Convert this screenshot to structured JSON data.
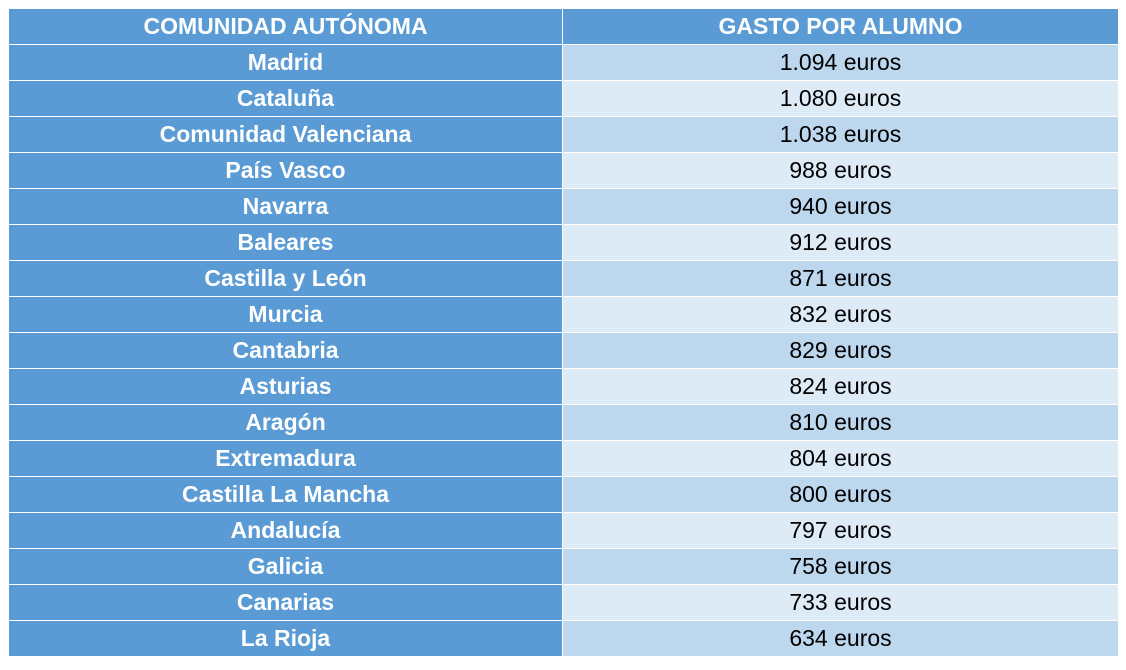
{
  "table": {
    "headers": [
      "COMUNIDAD AUTÓNOMA",
      "GASTO POR ALUMNO"
    ],
    "rows": [
      {
        "region": "Madrid",
        "value": "1.094 euros"
      },
      {
        "region": "Cataluña",
        "value": "1.080 euros"
      },
      {
        "region": "Comunidad Valenciana",
        "value": "1.038 euros"
      },
      {
        "region": "País Vasco",
        "value": "988 euros"
      },
      {
        "region": "Navarra",
        "value": "940 euros"
      },
      {
        "region": "Baleares",
        "value": "912 euros"
      },
      {
        "region": "Castilla y León",
        "value": "871 euros"
      },
      {
        "region": "Murcia",
        "value": "832 euros"
      },
      {
        "region": "Cantabria",
        "value": "829 euros"
      },
      {
        "region": "Asturias",
        "value": "824 euros"
      },
      {
        "region": "Aragón",
        "value": "810 euros"
      },
      {
        "region": "Extremadura",
        "value": "804 euros"
      },
      {
        "region": "Castilla La Mancha",
        "value": "800 euros"
      },
      {
        "region": "Andalucía",
        "value": "797 euros"
      },
      {
        "region": "Galicia",
        "value": "758 euros"
      },
      {
        "region": "Canarias",
        "value": "733 euros"
      },
      {
        "region": "La Rioja",
        "value": "634 euros"
      }
    ]
  },
  "colors": {
    "header_bg": "#5b9bd5",
    "region_bg": "#5b9bd5",
    "value_bg_odd": "#bdd7ee",
    "value_bg_even": "#ddebf7"
  }
}
